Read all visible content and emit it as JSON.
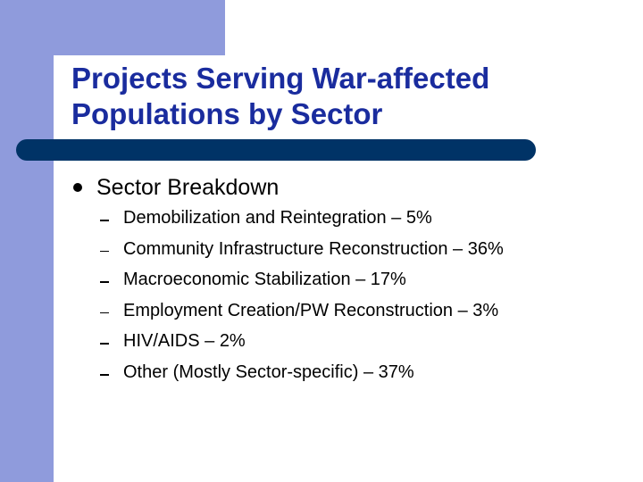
{
  "slide": {
    "title_lines": [
      "Projects Serving War-affected",
      "Populations by Sector"
    ],
    "bullet": "Sector Breakdown",
    "items": [
      "Demobilization and Reintegration – 5%",
      "Community Infrastructure Reconstruction – 36%",
      "Macroeconomic Stabilization – 17%",
      "Employment Creation/PW Reconstruction – 3%",
      "HIV/AIDS – 2%",
      "Other (Mostly Sector-specific) – 37%"
    ]
  },
  "colors": {
    "accent_band": "#8f9bdc",
    "title": "#1a2c9e",
    "divider": "#003366"
  }
}
